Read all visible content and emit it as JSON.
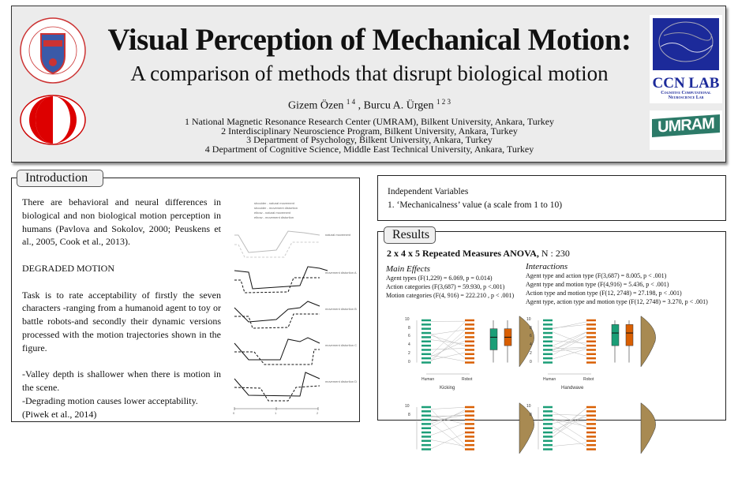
{
  "header": {
    "title": "Visual Perception of Mechanical Motion:",
    "subtitle": "A comparison of methods that disrupt biological motion",
    "authors": [
      {
        "name": "Gizem Özen",
        "affil": "1 4"
      },
      {
        "name": "Burcu A. Ürgen",
        "affil": "1 2 3"
      }
    ],
    "author_sep": " , ",
    "affiliations": [
      "1 National Magnetic Resonance Research Center (UMRAM), Bilkent University, Ankara, Turkey",
      "2  Interdisciplinary Neuroscience Program, Bilkent University, Ankara, Turkey",
      "3 Department of Psychology, Bilkent University, Ankara, Turkey",
      "4 Department of Cognitive Science, Middle East Technical University, Ankara, Turkey"
    ],
    "logos": {
      "bilkent": "İhsan Doğramacı Bilkent University 1984",
      "ccn_title": "CCN LAB",
      "ccn_sub1": "Cognitive Computational",
      "ccn_sub2": "Neuroscience Lab",
      "umram": "UMRAM"
    }
  },
  "introduction": {
    "heading": "Introduction",
    "p1": "There are behavioral and neural differences in biological and non biological motion perception in humans (Pavlova and Sokolov, 2000; Peuskens et al., 2005, Cook et al., 2013).",
    "p2": "DEGRADED MOTION",
    "p3": "Task is to rate acceptability of firstly the seven characters -ranging from a humanoid agent to toy or battle robots-and secondly their dynamic versions processed with the motion trajectories shown in the figure.",
    "p4a": "-Valley depth is shallower when there is motion in the scene.",
    "p4b": "-Degrading motion causes lower acceptability.",
    "p4c": "(Piwek et al., 2014)",
    "figure": {
      "legend": [
        "shoulder - natural movement",
        "shoulder - movement distortion",
        "elbow - natural movement",
        "elbow - movement distortion"
      ],
      "rows": [
        "natural movement",
        "movement distortion A",
        "movement distortion B",
        "movement distortion C",
        "movement distortion D"
      ],
      "axis_ticks": [
        "0",
        "1",
        "2"
      ]
    }
  },
  "variables": {
    "heading": "Independent Variables",
    "items": [
      "1. ‘Mechanicalness’ value (a scale from 1 to 10)"
    ]
  },
  "results": {
    "heading": "Results",
    "anova_bold": "2 x 4 x 5 Repeated Measures ANOVA,",
    "anova_n": " N : 230",
    "main_title": "Main Effects",
    "main": [
      "Agent types (F(1,229) = 6.069, p = 0.014)",
      "Action categories (F(3,687) = 59.930, p <.001)",
      "Motion categories (F(4, 916) = 222.210 , p < .001)"
    ],
    "inter_title": "Interactions",
    "interactions": [
      "Agent type and action type (F(3,687) = 8.005, p < .001)",
      "Agent type and motion type (F(4,916) = 5.436, p < .001)",
      "Action type and motion type (F(12, 2748) = 27.198, p < .001)",
      "Agent type, action type and motion type (F(12, 2748) = 3.270, p < .001)"
    ],
    "plots": [
      {
        "label": "Kicking",
        "x_labels": [
          "Human",
          "Robot"
        ],
        "y_ticks": [
          "10",
          "8",
          "6",
          "4",
          "2",
          "0"
        ],
        "human_box": [
          0,
          3,
          6,
          8,
          10
        ],
        "robot_box": [
          0,
          4,
          6,
          8,
          10
        ]
      },
      {
        "label": "Handwave",
        "x_labels": [
          "Human",
          "Robot"
        ],
        "y_ticks": [
          "10",
          "8",
          "6",
          "4",
          "2",
          "0"
        ],
        "human_box": [
          0,
          4,
          7,
          9,
          10
        ],
        "robot_box": [
          0,
          4,
          7,
          9,
          10
        ]
      }
    ],
    "bottom_plots_y_ticks": [
      "10",
      "8"
    ],
    "colors": {
      "human": "#1b9e77",
      "robot": "#d95f02",
      "density": "#a88a52"
    }
  }
}
